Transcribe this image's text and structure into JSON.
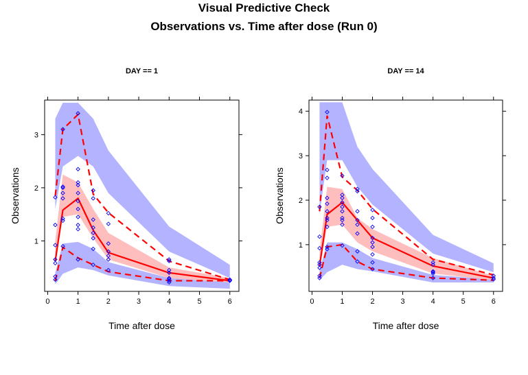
{
  "title_line1": "Visual Predictive Check",
  "title_line2": "Observations vs. Time after dose (Run 0)",
  "colors": {
    "pi_band": "#b3b3ff",
    "median_band": "#ffb3b3",
    "overlap_band": "#cc99cc",
    "obs_line": "#ff0000",
    "points": "#0000ff",
    "axis": "#000000"
  },
  "chart_data": [
    {
      "type": "line",
      "strip": "DAY == 1",
      "xlabel": "Time after dose",
      "ylabel": "Observations",
      "xlim": [
        -0.1,
        6.3
      ],
      "ylim": [
        0.05,
        3.65
      ],
      "xticks": [
        0,
        1,
        2,
        3,
        4,
        5,
        6
      ],
      "yticks": [
        1,
        2,
        3
      ],
      "bins": [
        0.25,
        0.5,
        1,
        1.5,
        2,
        4,
        6
      ],
      "pi_lower_band": {
        "lo": [
          0.18,
          0.38,
          0.5,
          0.45,
          0.35,
          0.15,
          0.1
        ],
        "hi": [
          0.4,
          0.95,
          0.98,
          0.85,
          0.6,
          0.3,
          0.22
        ]
      },
      "pi_upper_band": {
        "lo": [
          1.6,
          2.4,
          2.6,
          2.4,
          1.9,
          0.8,
          0.3
        ],
        "hi": [
          3.3,
          3.6,
          3.6,
          3.3,
          2.7,
          1.27,
          0.55
        ]
      },
      "median_band": {
        "lo": [
          0.6,
          1.45,
          1.5,
          1.05,
          0.65,
          0.3,
          0.22
        ],
        "hi": [
          1.0,
          2.25,
          2.1,
          1.6,
          1.15,
          0.5,
          0.3
        ]
      },
      "obs_median": [
        0.62,
        1.58,
        1.8,
        1.2,
        0.78,
        0.4,
        0.25
      ],
      "obs_p5": [
        0.25,
        0.88,
        0.68,
        0.55,
        0.42,
        0.25,
        0.25
      ],
      "obs_p95": [
        1.85,
        3.1,
        3.38,
        1.88,
        1.53,
        0.62,
        0.27
      ],
      "points": [
        [
          0.25,
          0.27
        ],
        [
          0.25,
          0.33
        ],
        [
          0.25,
          0.58
        ],
        [
          0.25,
          0.65
        ],
        [
          0.25,
          0.92
        ],
        [
          0.25,
          1.3
        ],
        [
          0.25,
          1.82
        ],
        [
          0.5,
          0.9
        ],
        [
          0.5,
          1.38
        ],
        [
          0.5,
          1.42
        ],
        [
          0.5,
          1.8
        ],
        [
          0.5,
          1.9
        ],
        [
          0.5,
          2.0
        ],
        [
          0.5,
          2.02
        ],
        [
          0.5,
          3.1
        ],
        [
          1,
          0.65
        ],
        [
          1,
          1.22
        ],
        [
          1,
          1.3
        ],
        [
          1,
          1.45
        ],
        [
          1,
          1.6
        ],
        [
          1,
          1.75
        ],
        [
          1,
          1.9
        ],
        [
          1,
          2.05
        ],
        [
          1,
          2.1
        ],
        [
          1,
          2.35
        ],
        [
          1,
          3.4
        ],
        [
          1.5,
          0.55
        ],
        [
          1.5,
          0.85
        ],
        [
          1.5,
          1.05
        ],
        [
          1.5,
          1.15
        ],
        [
          1.5,
          1.25
        ],
        [
          1.5,
          1.4
        ],
        [
          1.5,
          1.8
        ],
        [
          1.5,
          1.95
        ],
        [
          2,
          0.45
        ],
        [
          2,
          0.65
        ],
        [
          2,
          0.72
        ],
        [
          2,
          0.8
        ],
        [
          2,
          0.95
        ],
        [
          2,
          1.32
        ],
        [
          2,
          1.52
        ],
        [
          4,
          0.22
        ],
        [
          4,
          0.25
        ],
        [
          4,
          0.28
        ],
        [
          4,
          0.3
        ],
        [
          4,
          0.4
        ],
        [
          4,
          0.45
        ],
        [
          4,
          0.62
        ],
        [
          4,
          0.65
        ],
        [
          6,
          0.25
        ],
        [
          6,
          0.26
        ],
        [
          6,
          0.27
        ]
      ]
    },
    {
      "type": "line",
      "strip": "DAY == 14",
      "xlabel": "Time after dose",
      "ylabel": "Observations",
      "xlim": [
        -0.1,
        6.3
      ],
      "ylim": [
        -0.05,
        4.25
      ],
      "xticks": [
        0,
        1,
        2,
        3,
        4,
        5,
        6
      ],
      "yticks": [
        1,
        2,
        3,
        4
      ],
      "bins": [
        0.25,
        0.5,
        1,
        1.5,
        2,
        4,
        6
      ],
      "pi_lower_band": {
        "lo": [
          0.2,
          0.38,
          0.55,
          0.45,
          0.4,
          0.15,
          0.15
        ],
        "hi": [
          0.4,
          1.05,
          1.05,
          0.9,
          0.7,
          0.32,
          0.22
        ]
      },
      "pi_upper_band": {
        "lo": [
          1.7,
          2.9,
          2.9,
          2.3,
          1.9,
          0.8,
          0.38
        ],
        "hi": [
          4.2,
          4.2,
          4.2,
          3.2,
          2.7,
          1.22,
          0.58
        ]
      },
      "median_band": {
        "lo": [
          0.45,
          1.4,
          1.45,
          1.05,
          0.85,
          0.35,
          0.2
        ],
        "hi": [
          0.85,
          2.3,
          2.25,
          1.6,
          1.35,
          0.7,
          0.3
        ]
      },
      "obs_median": [
        0.52,
        1.68,
        1.95,
        1.55,
        1.15,
        0.52,
        0.25
      ],
      "obs_p5": [
        0.25,
        0.95,
        1.0,
        0.62,
        0.45,
        0.25,
        0.2
      ],
      "obs_p95": [
        1.75,
        3.9,
        2.52,
        2.22,
        1.8,
        0.67,
        0.32
      ],
      "points": [
        [
          0.25,
          0.25
        ],
        [
          0.25,
          0.3
        ],
        [
          0.25,
          0.48
        ],
        [
          0.25,
          0.55
        ],
        [
          0.25,
          0.6
        ],
        [
          0.25,
          0.92
        ],
        [
          0.25,
          1.18
        ],
        [
          0.25,
          1.85
        ],
        [
          0.5,
          0.9
        ],
        [
          0.5,
          0.95
        ],
        [
          0.5,
          1.4
        ],
        [
          0.5,
          1.55
        ],
        [
          0.5,
          1.6
        ],
        [
          0.5,
          1.75
        ],
        [
          0.5,
          1.92
        ],
        [
          0.5,
          2.05
        ],
        [
          0.5,
          2.5
        ],
        [
          0.5,
          2.68
        ],
        [
          0.5,
          3.98
        ],
        [
          1,
          0.98
        ],
        [
          1,
          1.45
        ],
        [
          1,
          1.55
        ],
        [
          1,
          1.6
        ],
        [
          1,
          1.75
        ],
        [
          1,
          1.85
        ],
        [
          1,
          1.95
        ],
        [
          1,
          2.05
        ],
        [
          1,
          2.12
        ],
        [
          1,
          2.55
        ],
        [
          1.5,
          0.62
        ],
        [
          1.5,
          0.85
        ],
        [
          1.5,
          1.25
        ],
        [
          1.5,
          1.45
        ],
        [
          1.5,
          1.55
        ],
        [
          1.5,
          1.75
        ],
        [
          1.5,
          2.2
        ],
        [
          1.5,
          2.25
        ],
        [
          2,
          0.45
        ],
        [
          2,
          0.6
        ],
        [
          2,
          0.78
        ],
        [
          2,
          0.95
        ],
        [
          2,
          1.05
        ],
        [
          2,
          1.15
        ],
        [
          2,
          1.4
        ],
        [
          2,
          1.6
        ],
        [
          2,
          1.78
        ],
        [
          4,
          0.25
        ],
        [
          4,
          0.35
        ],
        [
          4,
          0.38
        ],
        [
          4,
          0.4
        ],
        [
          4,
          0.55
        ],
        [
          4,
          0.6
        ],
        [
          6,
          0.22
        ],
        [
          6,
          0.25
        ],
        [
          6,
          0.3
        ]
      ]
    }
  ]
}
